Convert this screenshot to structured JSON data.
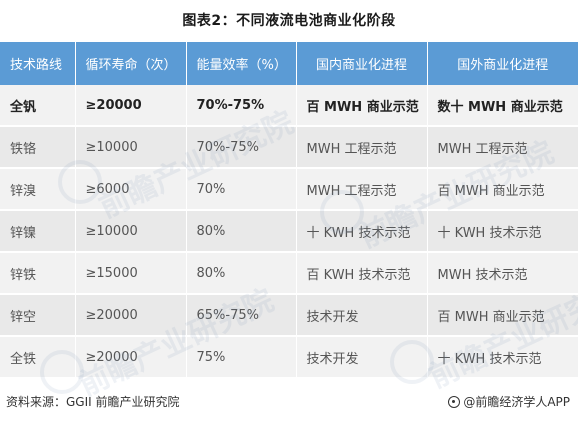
{
  "title": "图表2：不同液流电池商业化阶段",
  "table": {
    "headers": [
      "技术路线",
      "循环寿命（次）",
      "能量效率（%）",
      "国内商业化进程",
      "国外商业化进程"
    ],
    "rows": [
      [
        "全钒",
        "≥20000",
        "70%-75%",
        "百 MWH 商业示范",
        "数十 MWH 商业示范"
      ],
      [
        "铁铬",
        "≥10000",
        "70%-75%",
        "MWH 工程示范",
        "MWH 工程示范"
      ],
      [
        "锌溴",
        "≥6000",
        "70%",
        "MWH 工程示范",
        "百 MWH 商业示范"
      ],
      [
        "锌镍",
        "≥10000",
        "80%",
        "十 KWH 技术示范",
        "十 KWH 技术示范"
      ],
      [
        "锌铁",
        "≥15000",
        "80%",
        "百 KWH 技术示范",
        "MWH 技术示范"
      ],
      [
        "锌空",
        "≥20000",
        "65%-75%",
        "技术开发",
        "百 MWH 商业示范"
      ],
      [
        "全铁",
        "≥20000",
        "75%",
        "技术开发",
        "十 KWH 技术示范"
      ]
    ]
  },
  "watermark": {
    "text": "前瞻产业研究院"
  },
  "footer": {
    "source": "资料来源：GGII 前瞻产业研究院",
    "brand": "@前瞻经济学人APP",
    "brand_icon": "qianzhan-logo-icon"
  },
  "colors": {
    "header_bg": "#5b9bd5",
    "row_odd": "#f2f2f2",
    "row_even": "#e9e9e9"
  }
}
